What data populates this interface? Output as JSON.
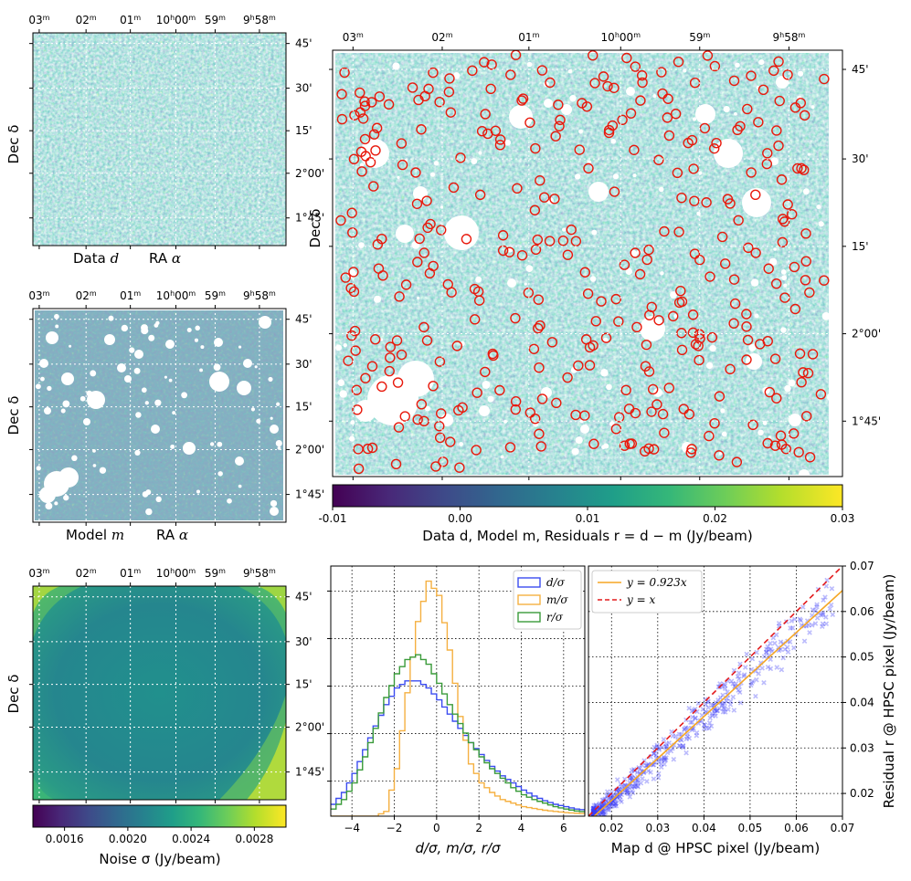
{
  "colors": {
    "viridis": [
      "#440154",
      "#482878",
      "#3e4a89",
      "#31688e",
      "#26828e",
      "#1f9e89",
      "#35b779",
      "#6dcd59",
      "#b4de2c",
      "#fde725"
    ],
    "residual_marker": "#e8190c",
    "gridline": "#ffffff",
    "hist_d": "#3b4cf0",
    "hist_m": "#f5b041",
    "hist_r": "#3a9b3a",
    "fit_line": "#f5a623",
    "identity_line": "#e31a1c",
    "scatter_points": "#3b3bf5"
  },
  "maps": {
    "ra_ticks": [
      "03",
      "02",
      "01",
      "10",
      "59",
      "9",
      "58"
    ],
    "ra_tick_labels": [
      {
        "h": "",
        "m": "03"
      },
      {
        "h": "",
        "m": "02"
      },
      {
        "h": "",
        "m": "01"
      },
      {
        "h": "10",
        "m": "00"
      },
      {
        "h": "",
        "m": "59"
      },
      {
        "h": "9",
        "m": "58"
      }
    ],
    "dec_ticks": [
      "45'",
      "30'",
      "15'",
      "2°00'",
      "1°45'"
    ],
    "dec_label": "Dec δ",
    "data_title": "Data",
    "data_symbol": "d",
    "model_title": "Model",
    "model_symbol": "m",
    "ra_label": "RA",
    "ra_symbol": "α",
    "residual_cbar_label_pre": "Data ",
    "residual_cbar_label": "Data d, Model m, Residuals r = d − m (Jy/beam)",
    "residual_cbar_ticks": [
      "-0.01",
      "0.00",
      "0.01",
      "0.02",
      "0.03"
    ],
    "noise_cbar_label": "Noise σ (Jy/beam)",
    "noise_cbar_ticks": [
      "0.0016",
      "0.0020",
      "0.0024",
      "0.0028"
    ]
  },
  "chart_data": [
    {
      "type": "heatmap",
      "panel": "data",
      "title": "Data d",
      "xlabel": "RA α",
      "ylabel": "Dec δ",
      "x_ticks": [
        "03m",
        "02m",
        "01m",
        "10h00m",
        "59m",
        "9h58m"
      ],
      "y_ticks": [
        "45'",
        "30'",
        "15'",
        "2°00'",
        "1°45'"
      ],
      "color_range": [
        -0.01,
        0.03
      ]
    },
    {
      "type": "heatmap",
      "panel": "model",
      "title": "Model m",
      "xlabel": "RA α",
      "ylabel": "Dec δ",
      "x_ticks": [
        "03m",
        "02m",
        "01m",
        "10h00m",
        "59m",
        "9h58m"
      ],
      "y_ticks": [
        "45'",
        "30'",
        "15'",
        "2°00'",
        "1°45'"
      ],
      "color_range": [
        -0.01,
        0.03
      ]
    },
    {
      "type": "heatmap",
      "panel": "residuals",
      "ylabel": "Dec δ",
      "x_ticks": [
        "03m",
        "02m",
        "01m",
        "10h00m",
        "59m",
        "9h58m"
      ],
      "y_ticks": [
        "45'",
        "30'",
        "15'",
        "2°00'",
        "1°45'"
      ],
      "colorbar": {
        "label": "Data d, Model m, Residuals r = d − m (Jy/beam)",
        "range": [
          -0.01,
          0.03
        ],
        "ticks": [
          -0.01,
          0.0,
          0.01,
          0.02,
          0.03
        ]
      }
    },
    {
      "type": "heatmap",
      "panel": "noise",
      "ylabel": "Dec δ",
      "x_ticks": [
        "03m",
        "02m",
        "01m",
        "10h00m",
        "59m",
        "9h58m"
      ],
      "y_ticks": [
        "45'",
        "30'",
        "15'",
        "2°00'",
        "1°45'"
      ],
      "colorbar": {
        "label": "Noise σ (Jy/beam)",
        "range": [
          0.0014,
          0.003
        ],
        "ticks": [
          0.0016,
          0.002,
          0.0024,
          0.0028
        ]
      }
    },
    {
      "type": "line",
      "panel": "histogram",
      "xlabel": "d/σ, m/σ, r/σ",
      "xlim": [
        -5,
        7
      ],
      "x_ticks": [
        -4,
        -2,
        0,
        2,
        4,
        6
      ],
      "legend": [
        "d/σ",
        "m/σ",
        "r/σ"
      ],
      "legend_position": "top-right",
      "grid": true,
      "series": [
        {
          "name": "d/σ",
          "x": [
            -5,
            -4.5,
            -4,
            -3.5,
            -3,
            -2.5,
            -2,
            -1.5,
            -1,
            -0.5,
            0,
            0.5,
            1,
            1.5,
            2,
            2.5,
            3,
            3.5,
            4,
            4.5,
            5,
            5.5,
            6,
            6.5,
            7
          ],
          "values": [
            0.05,
            0.1,
            0.18,
            0.28,
            0.38,
            0.47,
            0.54,
            0.57,
            0.57,
            0.54,
            0.49,
            0.43,
            0.37,
            0.31,
            0.26,
            0.21,
            0.17,
            0.14,
            0.11,
            0.085,
            0.065,
            0.05,
            0.04,
            0.03,
            0.025
          ]
        },
        {
          "name": "m/σ",
          "x": [
            -5,
            -4,
            -3,
            -2.5,
            -2,
            -1.5,
            -1,
            -0.5,
            0,
            0.5,
            1,
            1.5,
            2,
            2.5,
            3,
            4,
            5,
            6,
            7
          ],
          "values": [
            0,
            0,
            0,
            0.02,
            0.2,
            0.52,
            0.82,
            0.99,
            0.93,
            0.7,
            0.42,
            0.22,
            0.14,
            0.1,
            0.07,
            0.04,
            0.025,
            0.015,
            0.01
          ]
        },
        {
          "name": "r/σ",
          "x": [
            -5,
            -4.5,
            -4,
            -3.5,
            -3,
            -2.5,
            -2,
            -1.5,
            -1,
            -0.5,
            0,
            0.5,
            1,
            1.5,
            2,
            2.5,
            3,
            3.5,
            4,
            4.5,
            5,
            5.5,
            6,
            6.5,
            7
          ],
          "values": [
            0.03,
            0.07,
            0.14,
            0.25,
            0.37,
            0.5,
            0.6,
            0.66,
            0.68,
            0.64,
            0.56,
            0.47,
            0.39,
            0.31,
            0.25,
            0.2,
            0.16,
            0.12,
            0.09,
            0.07,
            0.055,
            0.04,
            0.03,
            0.022,
            0.017
          ]
        }
      ]
    },
    {
      "type": "scatter",
      "panel": "comparison",
      "xlabel": "Map d @ HPSC pixel (Jy/beam)",
      "ylabel": "Residual r @ HPSC pixel (Jy/beam)",
      "xlim": [
        0.015,
        0.07
      ],
      "ylim": [
        0.015,
        0.07
      ],
      "x_ticks": [
        0.02,
        0.03,
        0.04,
        0.05,
        0.06,
        0.07
      ],
      "y_ticks": [
        0.02,
        0.03,
        0.04,
        0.05,
        0.06,
        0.07
      ],
      "legend": [
        "y = 0.923x",
        "y = x"
      ],
      "legend_position": "top-left",
      "fit_slope": 0.923,
      "grid": true
    }
  ],
  "hist": {
    "xlabel": "d/σ, m/σ, r/σ",
    "x_ticks": [
      "−4",
      "−2",
      "0",
      "2",
      "4",
      "6"
    ],
    "legend": [
      {
        "name": "d/σ",
        "num": "d",
        "den": "σ"
      },
      {
        "name": "m/σ",
        "num": "m",
        "den": "σ"
      },
      {
        "name": "r/σ",
        "num": "r",
        "den": "σ"
      }
    ]
  },
  "scatter": {
    "xlabel": "Map d @ HPSC pixel (Jy/beam)",
    "ylabel": "Residual r @ HPSC pixel (Jy/beam)",
    "x_ticks": [
      "0.02",
      "0.03",
      "0.04",
      "0.05",
      "0.06",
      "0.07"
    ],
    "y_ticks": [
      "0.02",
      "0.03",
      "0.04",
      "0.05",
      "0.06",
      "0.07"
    ],
    "legend": [
      "y = 0.923x",
      "y = x"
    ]
  }
}
